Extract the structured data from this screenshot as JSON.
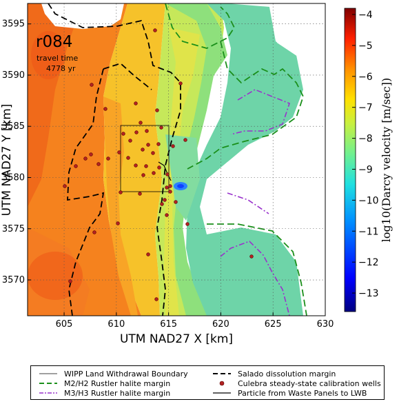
{
  "map": {
    "run_id": "r084",
    "travel_time_label": "travel time",
    "travel_time_value": "4778 yr",
    "x_axis_label": "UTM NAD27 X [km]",
    "y_axis_label": "UTM NAD27 Y [km]",
    "x_ticks": [
      "605",
      "610",
      "615",
      "620",
      "625",
      "630"
    ],
    "y_ticks": [
      "3570",
      "3575",
      "3580",
      "3585",
      "3590",
      "3595"
    ],
    "x_range_km": [
      601.5,
      630
    ],
    "y_range_km": [
      3566.5,
      3597
    ],
    "wipp_boundary_km": {
      "x": [
        610.6,
        616.8
      ],
      "y": [
        3578.7,
        3585.1
      ]
    }
  },
  "colorbar": {
    "label": "log10(Darcy velocity [m/sec])",
    "ticks": [
      "-4",
      "-5",
      "-6",
      "-7",
      "-8",
      "-9",
      "-10",
      "-11",
      "-12",
      "-13"
    ],
    "range": [
      -13.6,
      -3.8
    ],
    "colors": [
      "#00007f",
      "#0000ff",
      "#0080ff",
      "#00e0ff",
      "#60ffa0",
      "#c0ff40",
      "#ffe000",
      "#ff8000",
      "#ff2000",
      "#7f0000"
    ]
  },
  "legend": {
    "items": [
      {
        "label": "WIPP Land Withdrawal Boundary",
        "style": "thin-solid",
        "color": "#000000"
      },
      {
        "label": "Salado dissolution margin",
        "style": "dashed",
        "color": "#000000"
      },
      {
        "label": "M2/H2 Rustler halite margin",
        "style": "dashed",
        "color": "#1a8f1a"
      },
      {
        "label": "Culebra steady-state calibration wells",
        "style": "dot",
        "color": "#b22222"
      },
      {
        "label": "M3/H3 Rustler halite margin",
        "style": "dash-dot",
        "color": "#9932cc"
      },
      {
        "label": "Particle from Waste Panels to LWB",
        "style": "solid",
        "color": "#000000"
      }
    ]
  }
}
